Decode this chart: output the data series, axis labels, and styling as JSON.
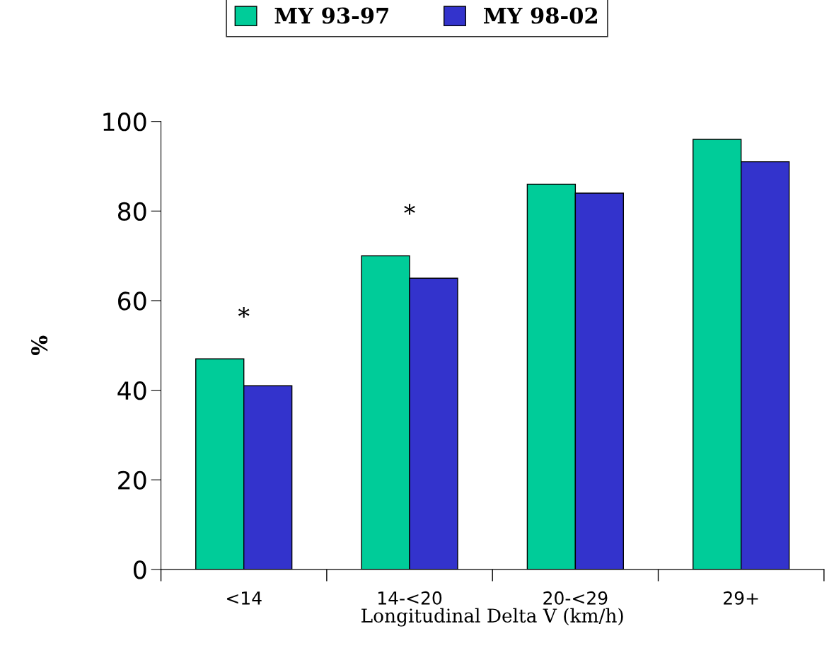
{
  "chart_data": {
    "type": "bar",
    "categories": [
      "<14",
      "14-<20",
      "20-<29",
      "29+"
    ],
    "series": [
      {
        "name": "MY 93-97",
        "color": "#00cc99",
        "values": [
          47,
          70,
          86,
          96
        ]
      },
      {
        "name": "MY 98-02",
        "color": "#3333cc",
        "values": [
          41,
          65,
          84,
          91
        ]
      }
    ],
    "xlabel": "Longitudinal Delta V (km/h)",
    "ylabel": "%",
    "ylim": [
      0,
      100
    ],
    "yticks": [
      0,
      20,
      40,
      60,
      80,
      100
    ],
    "annotations": [
      "*",
      "*"
    ],
    "legend": "top",
    "grid": false
  }
}
